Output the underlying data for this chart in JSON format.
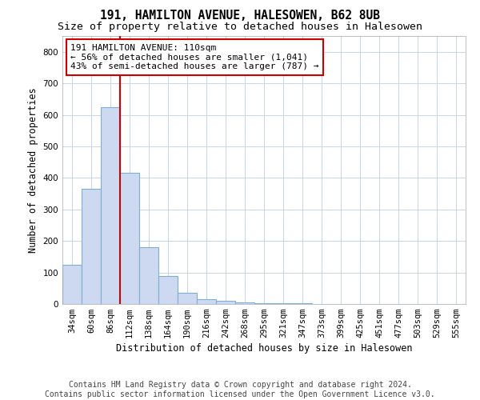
{
  "title": "191, HAMILTON AVENUE, HALESOWEN, B62 8UB",
  "subtitle": "Size of property relative to detached houses in Halesowen",
  "xlabel": "Distribution of detached houses by size in Halesowen",
  "ylabel": "Number of detached properties",
  "categories": [
    "34sqm",
    "60sqm",
    "86sqm",
    "112sqm",
    "138sqm",
    "164sqm",
    "190sqm",
    "216sqm",
    "242sqm",
    "268sqm",
    "295sqm",
    "321sqm",
    "347sqm",
    "373sqm",
    "399sqm",
    "425sqm",
    "451sqm",
    "477sqm",
    "503sqm",
    "529sqm",
    "555sqm"
  ],
  "values": [
    125,
    365,
    625,
    415,
    180,
    90,
    35,
    15,
    10,
    5,
    3,
    2,
    2,
    1,
    1,
    1,
    0,
    0,
    0,
    0,
    0
  ],
  "bar_color": "#ccd9f0",
  "bar_edge_color": "#7fafd4",
  "vline_color": "#cc0000",
  "vline_x": 2.5,
  "annotation_text": "191 HAMILTON AVENUE: 110sqm\n← 56% of detached houses are smaller (1,041)\n43% of semi-detached houses are larger (787) →",
  "annotation_box_color": "#ffffff",
  "annotation_box_edge_color": "#cc0000",
  "ylim": [
    0,
    850
  ],
  "yticks": [
    0,
    100,
    200,
    300,
    400,
    500,
    600,
    700,
    800
  ],
  "footer": "Contains HM Land Registry data © Crown copyright and database right 2024.\nContains public sector information licensed under the Open Government Licence v3.0.",
  "bg_color": "#ffffff",
  "grid_color": "#c8d4e8",
  "title_fontsize": 10.5,
  "subtitle_fontsize": 9.5,
  "axis_label_fontsize": 8.5,
  "tick_fontsize": 7.5,
  "annotation_fontsize": 8,
  "footer_fontsize": 7
}
